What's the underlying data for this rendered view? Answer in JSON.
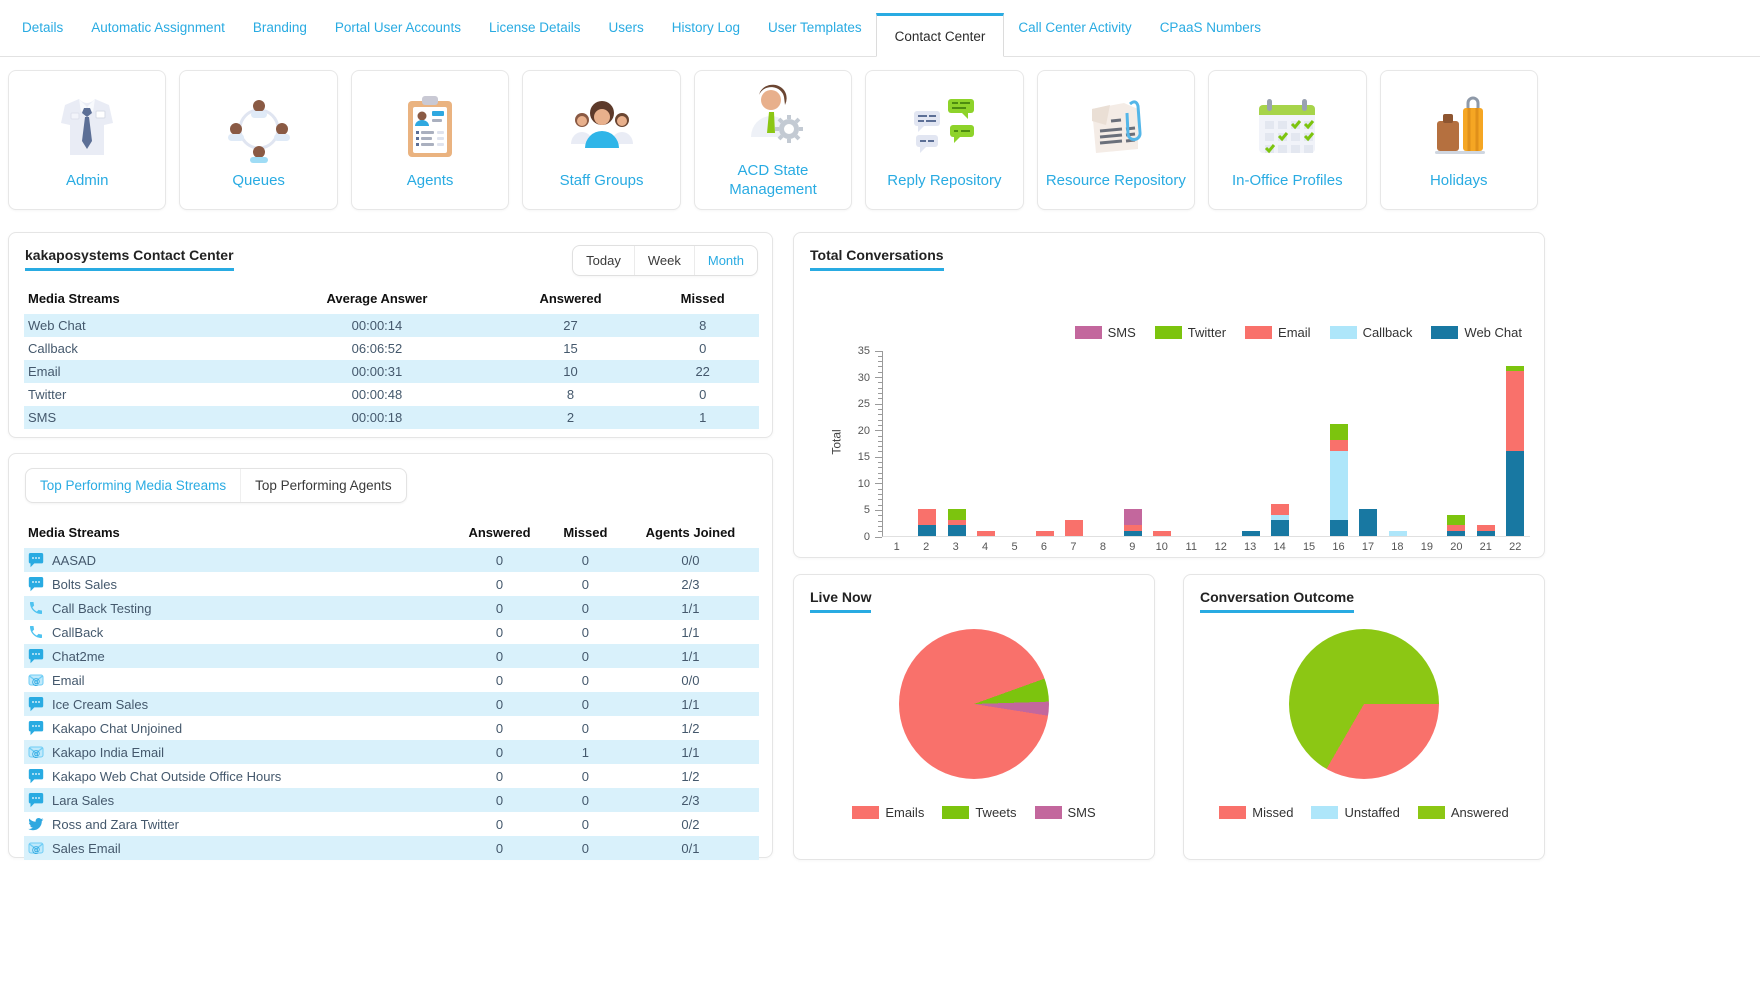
{
  "tabs": {
    "active": "Contact Center",
    "items": [
      "Details",
      "Automatic Assignment",
      "Branding",
      "Portal User Accounts",
      "License Details",
      "Users",
      "History Log",
      "User Templates",
      "Contact Center",
      "Call Center Activity",
      "CPaaS Numbers"
    ]
  },
  "cards": [
    {
      "label": "Admin",
      "icon": "shirt-tie-icon"
    },
    {
      "label": "Queues",
      "icon": "people-circle-icon"
    },
    {
      "label": "Agents",
      "icon": "clipboard-person-icon"
    },
    {
      "label": "Staff Groups",
      "icon": "people-group-icon"
    },
    {
      "label": "ACD State Management",
      "icon": "person-gear-icon"
    },
    {
      "label": "Reply Repository",
      "icon": "chat-bubbles-icon"
    },
    {
      "label": "Resource Repository",
      "icon": "newspaper-clip-icon"
    },
    {
      "label": "In-Office Profiles",
      "icon": "calendar-check-icon"
    },
    {
      "label": "Holidays",
      "icon": "luggage-icon"
    }
  ],
  "summary": {
    "title": "kakaposystems Contact Center",
    "range_options": [
      "Today",
      "Week",
      "Month"
    ],
    "active_range": "Month",
    "headers": [
      "Media Streams",
      "Average Answer",
      "Answered",
      "Missed"
    ],
    "rows": [
      [
        "Web Chat",
        "00:00:14",
        "27",
        "8"
      ],
      [
        "Callback",
        "06:06:52",
        "15",
        "0"
      ],
      [
        "Email",
        "00:00:31",
        "10",
        "22"
      ],
      [
        "Twitter",
        "00:00:48",
        "8",
        "0"
      ],
      [
        "SMS",
        "00:00:18",
        "2",
        "1"
      ]
    ]
  },
  "top_performing": {
    "tabs": [
      "Top Performing Media Streams",
      "Top Performing Agents"
    ],
    "active_tab": "Top Performing Media Streams",
    "headers": [
      "Media Streams",
      "Answered",
      "Missed",
      "Agents Joined"
    ],
    "rows": [
      {
        "icon": "chat-bubble-icon",
        "name": "AASAD",
        "answered": "0",
        "missed": "0",
        "agents_joined": "0/0"
      },
      {
        "icon": "chat-bubble-icon",
        "name": "Bolts Sales",
        "answered": "0",
        "missed": "0",
        "agents_joined": "2/3"
      },
      {
        "icon": "phone-icon",
        "name": "Call Back Testing",
        "answered": "0",
        "missed": "0",
        "agents_joined": "1/1"
      },
      {
        "icon": "phone-icon",
        "name": "CallBack",
        "answered": "0",
        "missed": "0",
        "agents_joined": "1/1"
      },
      {
        "icon": "chat-bubble-icon",
        "name": "Chat2me",
        "answered": "0",
        "missed": "0",
        "agents_joined": "1/1"
      },
      {
        "icon": "email-at-icon",
        "name": "Email",
        "answered": "0",
        "missed": "0",
        "agents_joined": "0/0"
      },
      {
        "icon": "chat-bubble-icon",
        "name": "Ice Cream Sales",
        "answered": "0",
        "missed": "0",
        "agents_joined": "1/1"
      },
      {
        "icon": "chat-bubble-icon",
        "name": "Kakapo Chat Unjoined",
        "answered": "0",
        "missed": "0",
        "agents_joined": "1/2"
      },
      {
        "icon": "email-at-icon",
        "name": "Kakapo India Email",
        "answered": "0",
        "missed": "1",
        "agents_joined": "1/1"
      },
      {
        "icon": "chat-bubble-icon",
        "name": "Kakapo Web Chat Outside Office Hours",
        "answered": "0",
        "missed": "0",
        "agents_joined": "1/2"
      },
      {
        "icon": "chat-bubble-icon",
        "name": "Lara Sales",
        "answered": "0",
        "missed": "0",
        "agents_joined": "2/3"
      },
      {
        "icon": "twitter-bird-icon",
        "name": "Ross and Zara Twitter",
        "answered": "0",
        "missed": "0",
        "agents_joined": "0/2"
      },
      {
        "icon": "email-at-icon",
        "name": "Sales Email",
        "answered": "0",
        "missed": "0",
        "agents_joined": "0/1"
      }
    ]
  },
  "chart_data": [
    {
      "id": "total-conversations",
      "type": "bar",
      "stacked": true,
      "title": "Total Conversations",
      "xlabel": "",
      "ylabel": "Total",
      "ylim": [
        0,
        35
      ],
      "yticks": [
        0,
        5,
        10,
        15,
        20,
        25,
        30,
        35
      ],
      "grid": false,
      "legend_position": "top-right",
      "legend_order": [
        "SMS",
        "Twitter",
        "Email",
        "Callback",
        "Web Chat"
      ],
      "categories": [
        "1",
        "2",
        "3",
        "4",
        "5",
        "6",
        "7",
        "8",
        "9",
        "10",
        "11",
        "12",
        "13",
        "14",
        "15",
        "16",
        "17",
        "18",
        "19",
        "20",
        "21",
        "22"
      ],
      "series": [
        {
          "name": "Web Chat",
          "color": "#1878a2",
          "values": [
            0,
            2,
            2,
            0,
            0,
            0,
            0,
            0,
            1,
            0,
            0,
            0,
            1,
            3,
            0,
            3,
            5,
            0,
            0,
            1,
            1,
            16
          ]
        },
        {
          "name": "Callback",
          "color": "#aee6fa",
          "values": [
            0,
            0,
            0,
            0,
            0,
            0,
            0,
            0,
            0,
            0,
            0,
            0,
            0,
            1,
            0,
            13,
            0,
            1,
            0,
            0,
            0,
            0
          ]
        },
        {
          "name": "Email",
          "color": "#f9716b",
          "values": [
            0,
            3,
            1,
            1,
            0,
            1,
            3,
            0,
            1,
            1,
            0,
            0,
            0,
            2,
            0,
            2,
            0,
            0,
            0,
            1,
            1,
            15
          ]
        },
        {
          "name": "Twitter",
          "color": "#7cc40e",
          "values": [
            0,
            0,
            2,
            0,
            0,
            0,
            0,
            0,
            0,
            0,
            0,
            0,
            0,
            0,
            0,
            3,
            0,
            0,
            0,
            2,
            0,
            1
          ]
        },
        {
          "name": "SMS",
          "color": "#c3679d",
          "values": [
            0,
            0,
            0,
            0,
            0,
            0,
            0,
            0,
            3,
            0,
            0,
            0,
            0,
            0,
            0,
            0,
            0,
            0,
            0,
            0,
            0,
            0
          ]
        }
      ]
    },
    {
      "id": "live-now",
      "type": "pie",
      "title": "Live Now",
      "start_angle": 99,
      "legend_position": "bottom",
      "slices": [
        {
          "label": "Emails",
          "value": 92,
          "color": "#f9716b"
        },
        {
          "label": "Tweets",
          "value": 5,
          "color": "#7cc40e"
        },
        {
          "label": "SMS",
          "value": 3,
          "color": "#c3679d"
        }
      ]
    },
    {
      "id": "conversation-outcome",
      "type": "pie",
      "title": "Conversation Outcome",
      "start_angle": 90,
      "legend_position": "bottom",
      "slices": [
        {
          "label": "Missed",
          "value": 31,
          "color": "#f9716b"
        },
        {
          "label": "Unstaffed",
          "value": 0,
          "color": "#aee6fa"
        },
        {
          "label": "Answered",
          "value": 62,
          "color": "#8cc714"
        }
      ]
    }
  ],
  "colors": {
    "accent": "#29abe2",
    "row_alt": "#d9f1fb",
    "web_chat": "#1878a2",
    "callback": "#aee6fa",
    "email": "#f9716b",
    "twitter": "#7cc40e",
    "sms": "#c3679d",
    "answered": "#8cc714"
  }
}
